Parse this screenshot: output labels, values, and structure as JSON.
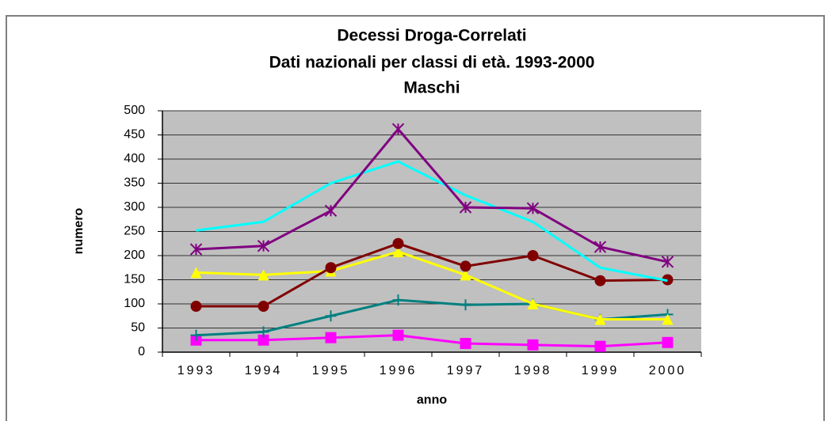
{
  "chart_data": {
    "type": "line",
    "title": [
      "Decessi Droga-Correlati",
      "Dati nazionali per classi di età. 1993-2000",
      "Maschi"
    ],
    "x_label": "anno",
    "y_label": "numero",
    "categories": [
      "1993",
      "1994",
      "1995",
      "1996",
      "1997",
      "1998",
      "1999",
      "2000"
    ],
    "ylim": [
      0,
      500
    ],
    "yticks": [
      0,
      50,
      100,
      150,
      200,
      250,
      300,
      350,
      400,
      450,
      500
    ],
    "grid": true,
    "series": [
      {
        "color": "#ff00ff",
        "marker": "square",
        "values": [
          25,
          25,
          30,
          35,
          18,
          15,
          12,
          20
        ]
      },
      {
        "color": "#008080",
        "marker": "plus",
        "values": [
          35,
          42,
          75,
          108,
          98,
          100,
          68,
          78
        ]
      },
      {
        "color": "#ffff00",
        "marker": "triangle",
        "values": [
          165,
          160,
          168,
          208,
          160,
          100,
          68,
          68
        ]
      },
      {
        "color": "#800000",
        "marker": "circle",
        "values": [
          95,
          95,
          175,
          225,
          178,
          200,
          148,
          150
        ]
      },
      {
        "color": "#00ffff",
        "marker": "none",
        "values": [
          252,
          270,
          350,
          395,
          325,
          270,
          175,
          148
        ]
      },
      {
        "color": "#800080",
        "marker": "star",
        "values": [
          213,
          220,
          293,
          462,
          300,
          298,
          218,
          187
        ]
      }
    ]
  }
}
